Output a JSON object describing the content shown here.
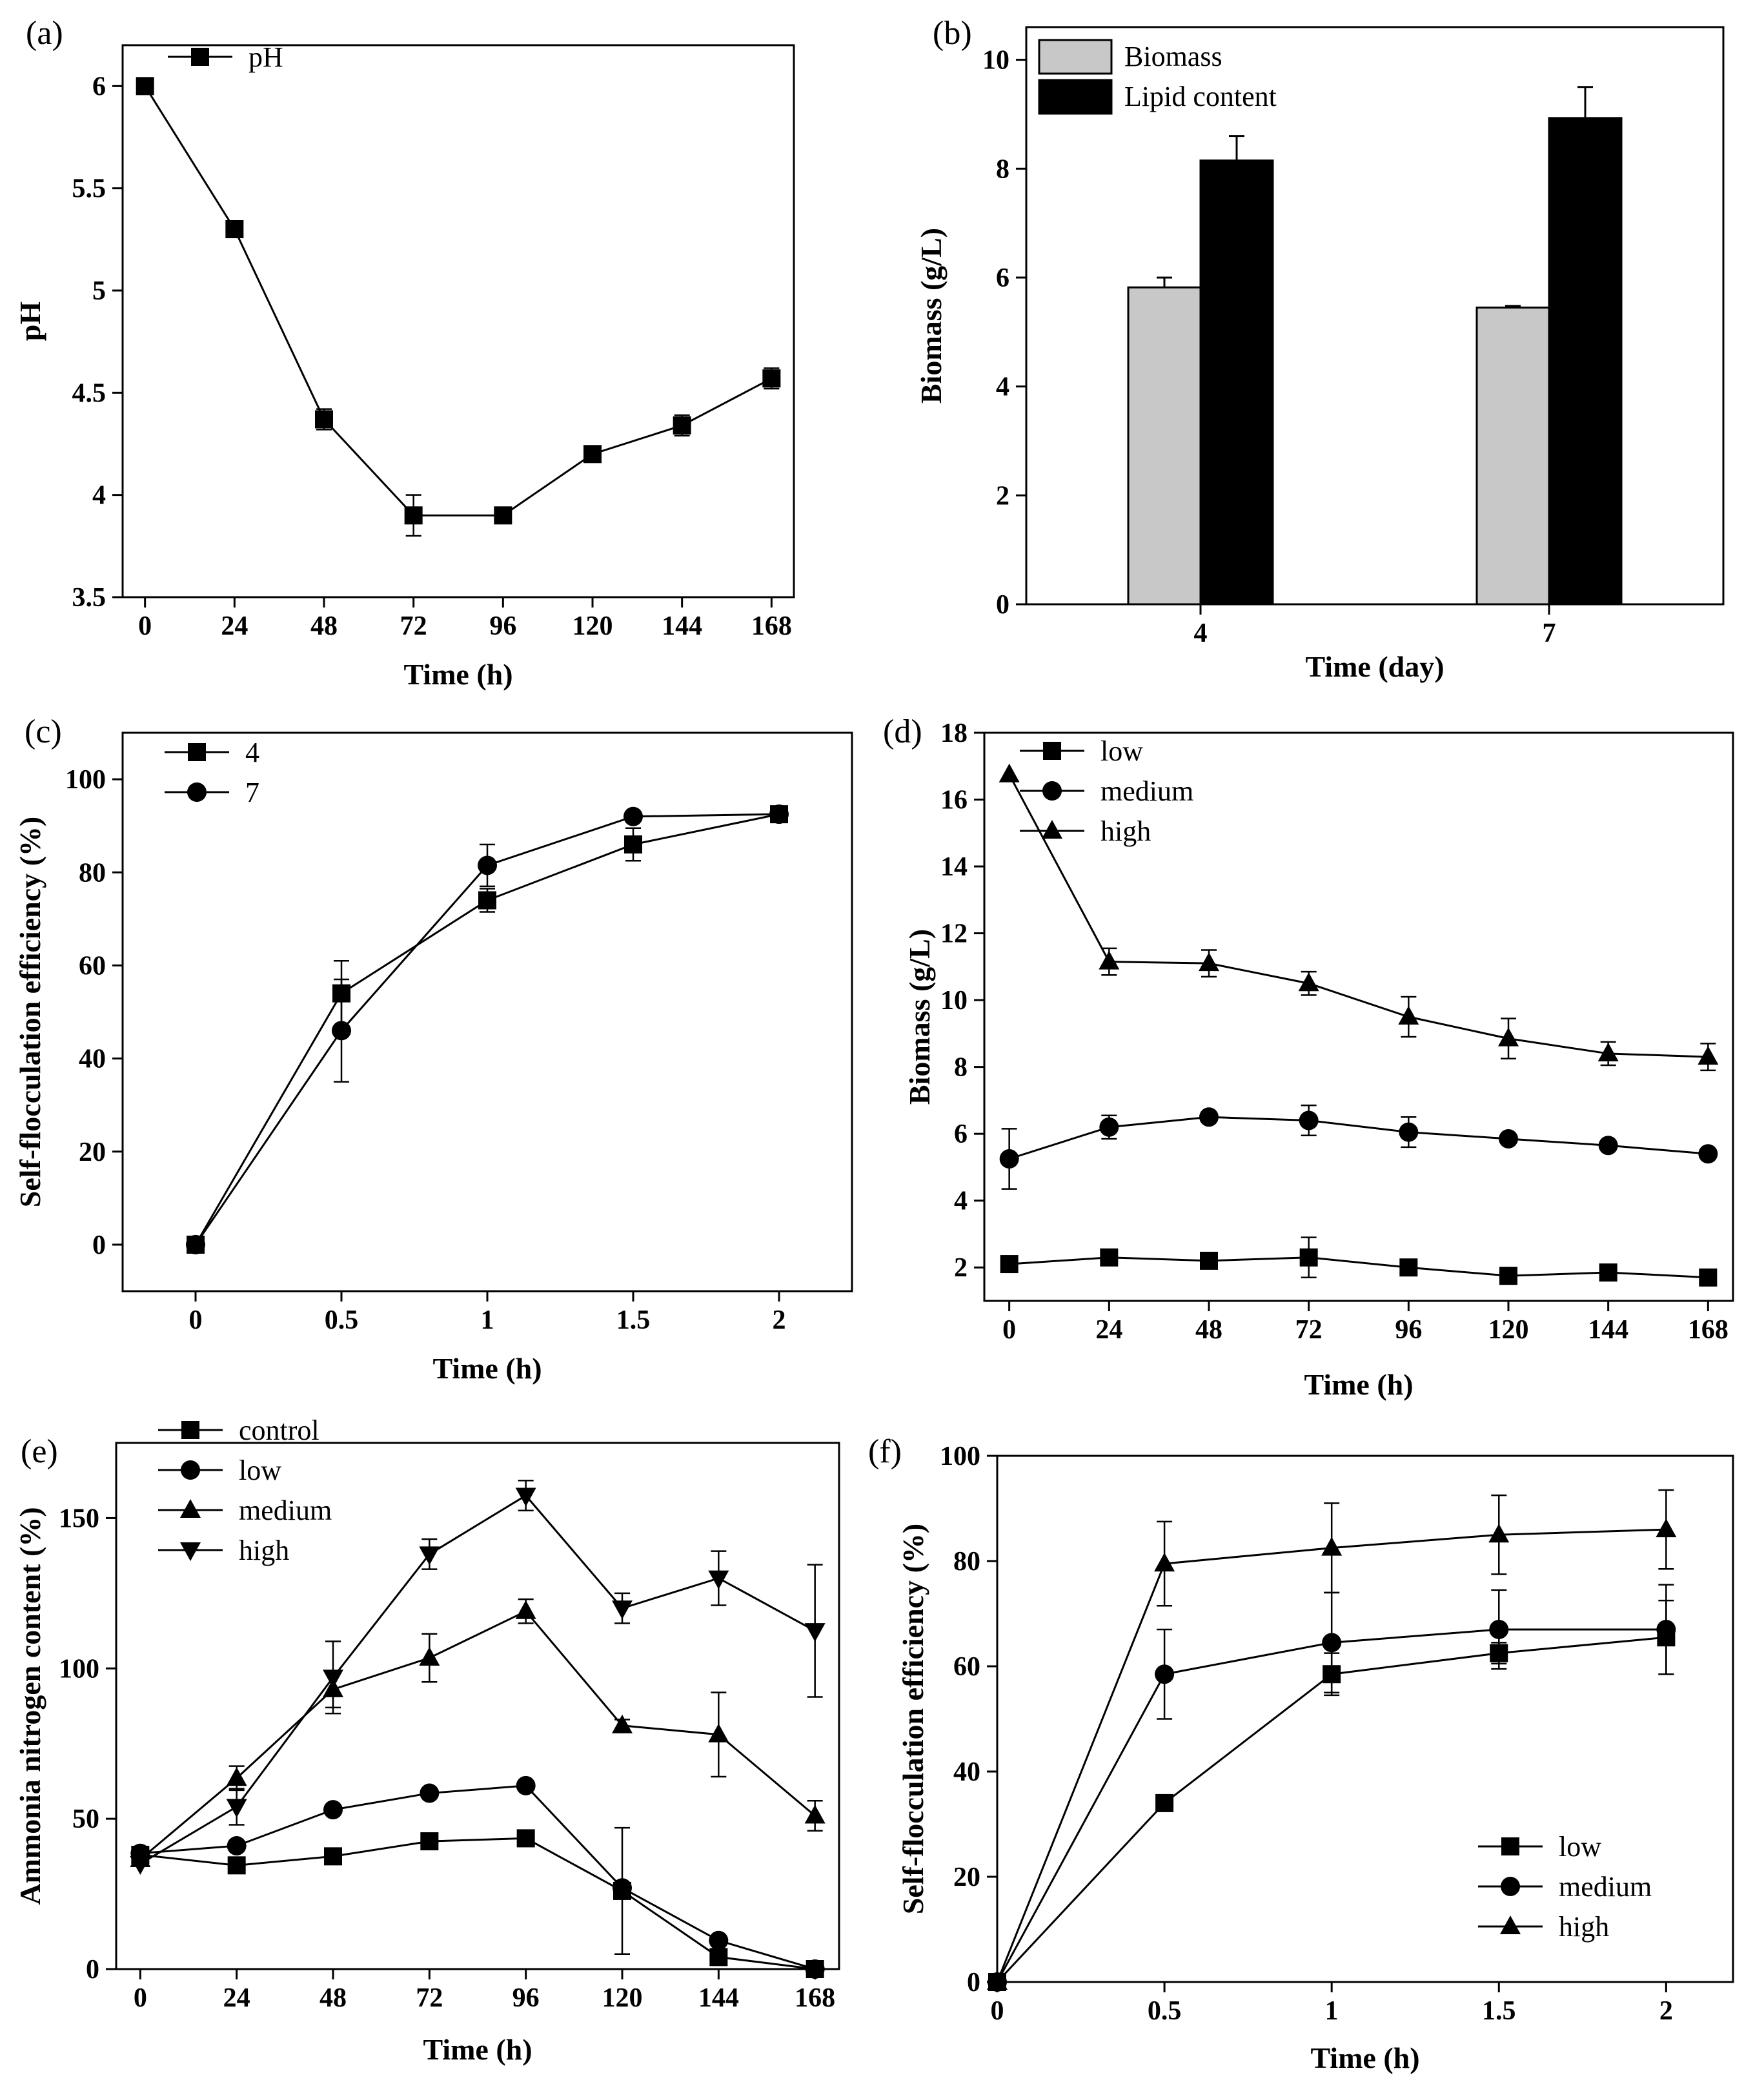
{
  "chart_data": [
    {
      "panel": "(a)",
      "type": "line",
      "xlabel": "Time (h)",
      "ylabel": "pH",
      "xlim": [
        -6,
        174
      ],
      "ylim": [
        3.5,
        6.2
      ],
      "xticks": [
        0,
        24,
        48,
        72,
        96,
        120,
        144,
        168
      ],
      "yticks": [
        3.5,
        4,
        4.5,
        5,
        5.5,
        6
      ],
      "ytick_labels": [
        "3.5",
        "4",
        "4.5",
        "5",
        "5.5",
        "6"
      ],
      "legend_pos": "top-left",
      "series": [
        {
          "name": "pH",
          "marker": "square",
          "x": [
            0,
            24,
            48,
            72,
            96,
            120,
            144,
            168
          ],
          "y": [
            6.0,
            5.3,
            4.37,
            3.9,
            3.9,
            4.2,
            4.34,
            4.57
          ],
          "err": [
            0,
            0,
            0.05,
            0.1,
            0,
            0,
            0.05,
            0.05
          ]
        }
      ]
    },
    {
      "panel": "(b)",
      "type": "bar",
      "xlabel": "Time (day)",
      "ylabel": "Biomass (g/L)",
      "ylim": [
        0,
        10.6
      ],
      "yticks": [
        0,
        2,
        4,
        6,
        8,
        10
      ],
      "ytick_labels": [
        "0",
        "2",
        "4",
        "6",
        "8",
        "10"
      ],
      "categories": [
        "4",
        "7"
      ],
      "legend_pos": "top-left",
      "series": [
        {
          "name": "Biomass",
          "color": "#c8c8c8",
          "values": [
            5.82,
            5.45
          ],
          "err": [
            0.18,
            0.03
          ]
        },
        {
          "name": "Lipid content",
          "color": "#000000",
          "values": [
            8.15,
            8.93
          ],
          "err": [
            0.45,
            0.57
          ]
        }
      ]
    },
    {
      "panel": "(c)",
      "type": "line",
      "xlabel": "Time (h)",
      "ylabel": "Self-flocculation efficiency (%)",
      "xlim": [
        -0.25,
        2.25
      ],
      "ylim": [
        -10,
        110
      ],
      "xticks": [
        0,
        0.5,
        1,
        1.5,
        2
      ],
      "xtick_labels": [
        "0",
        "0.5",
        "1",
        "1.5",
        "2"
      ],
      "yticks": [
        0,
        20,
        40,
        60,
        80,
        100
      ],
      "ytick_labels": [
        "0",
        "20",
        "40",
        "60",
        "80",
        "100"
      ],
      "legend_pos": "top-left",
      "series": [
        {
          "name": "4",
          "marker": "square",
          "x": [
            0,
            0.5,
            1,
            1.5,
            2
          ],
          "y": [
            0,
            54,
            74,
            86,
            92.5
          ],
          "err": [
            0,
            7,
            2.5,
            3.5,
            0
          ]
        },
        {
          "name": "7",
          "marker": "circle",
          "x": [
            0,
            0.5,
            1,
            1.5,
            2
          ],
          "y": [
            0,
            46,
            81.5,
            92,
            92.5
          ],
          "err": [
            0,
            11,
            4.5,
            0,
            0
          ]
        }
      ]
    },
    {
      "panel": "(d)",
      "type": "line",
      "xlabel": "Time (h)",
      "ylabel": "Biomass (g/L)",
      "xlim": [
        -6,
        174
      ],
      "ylim": [
        1,
        18
      ],
      "xticks": [
        0,
        24,
        48,
        72,
        96,
        120,
        144,
        168
      ],
      "yticks": [
        2,
        4,
        6,
        8,
        10,
        12,
        14,
        16,
        18
      ],
      "ytick_labels": [
        "2",
        "4",
        "6",
        "8",
        "10",
        "12",
        "14",
        "16",
        "18"
      ],
      "legend_pos": "top-left",
      "series": [
        {
          "name": "low",
          "marker": "square",
          "x": [
            0,
            24,
            48,
            72,
            96,
            120,
            144,
            168
          ],
          "y": [
            2.1,
            2.3,
            2.2,
            2.3,
            2.0,
            1.75,
            1.85,
            1.7
          ],
          "err": [
            0,
            0,
            0,
            0.6,
            0,
            0,
            0,
            0
          ]
        },
        {
          "name": "medium",
          "marker": "circle",
          "x": [
            0,
            24,
            48,
            72,
            96,
            120,
            144,
            168
          ],
          "y": [
            5.25,
            6.2,
            6.5,
            6.4,
            6.05,
            5.85,
            5.65,
            5.4
          ],
          "err": [
            0.9,
            0.35,
            0,
            0.45,
            0.45,
            0,
            0,
            0
          ]
        },
        {
          "name": "high",
          "marker": "triangle",
          "x": [
            0,
            24,
            48,
            72,
            96,
            120,
            144,
            168
          ],
          "y": [
            16.75,
            11.15,
            11.1,
            10.5,
            9.5,
            8.85,
            8.4,
            8.3
          ],
          "err": [
            0,
            0.4,
            0.4,
            0.35,
            0.6,
            0.6,
            0.35,
            0.4
          ]
        }
      ]
    },
    {
      "panel": "(e)",
      "type": "line",
      "xlabel": "Time (h)",
      "ylabel": "Ammonia nitrogen content (%)",
      "xlim": [
        -6,
        174
      ],
      "ylim": [
        0,
        175
      ],
      "xticks": [
        0,
        24,
        48,
        72,
        96,
        120,
        144,
        168
      ],
      "yticks": [
        0,
        50,
        100,
        150
      ],
      "ytick_labels": [
        "0",
        "50",
        "100",
        "150"
      ],
      "legend_pos": "top-left",
      "series": [
        {
          "name": "control",
          "marker": "square",
          "x": [
            0,
            24,
            48,
            72,
            96,
            120,
            144,
            168
          ],
          "y": [
            38,
            34.5,
            37.5,
            42.5,
            43.5,
            26,
            4,
            0
          ],
          "err": [
            0,
            0,
            0,
            0,
            0,
            21,
            0,
            0
          ]
        },
        {
          "name": "low",
          "marker": "circle",
          "x": [
            0,
            24,
            48,
            72,
            96,
            120,
            144,
            168
          ],
          "y": [
            38.5,
            41,
            53,
            58.5,
            61,
            27,
            9.5,
            0
          ],
          "err": [
            0,
            0,
            0,
            0,
            0,
            0,
            0,
            0
          ]
        },
        {
          "name": "medium",
          "marker": "triangle",
          "x": [
            0,
            24,
            48,
            72,
            96,
            120,
            144,
            168
          ],
          "y": [
            36.5,
            63.5,
            93,
            103.5,
            119,
            81,
            78,
            51
          ],
          "err": [
            0,
            4,
            6,
            8,
            4,
            2,
            14,
            5
          ]
        },
        {
          "name": "high",
          "marker": "triangle-down",
          "x": [
            0,
            24,
            48,
            72,
            96,
            120,
            144,
            168
          ],
          "y": [
            35,
            54,
            97,
            138,
            157.5,
            120,
            130,
            112.5
          ],
          "err": [
            0,
            6,
            12,
            5,
            5,
            5,
            9,
            22
          ]
        }
      ]
    },
    {
      "panel": "(f)",
      "type": "line",
      "xlabel": "Time (h)",
      "ylabel": "Self-flocculation efficiency (%)",
      "xlim": [
        0,
        2.2
      ],
      "ylim": [
        0,
        100
      ],
      "xticks": [
        0,
        0.5,
        1,
        1.5,
        2
      ],
      "xtick_labels": [
        "0",
        "0.5",
        "1",
        "1.5",
        "2"
      ],
      "yticks": [
        0,
        20,
        40,
        60,
        80,
        100
      ],
      "ytick_labels": [
        "0",
        "20",
        "40",
        "60",
        "80",
        "100"
      ],
      "legend_pos": "bottom-right",
      "series": [
        {
          "name": "low",
          "marker": "square",
          "x": [
            0,
            0.5,
            1,
            1.5,
            2
          ],
          "y": [
            0,
            34,
            58.5,
            62.5,
            65.5
          ],
          "err": [
            0,
            0,
            4,
            2,
            7
          ]
        },
        {
          "name": "medium",
          "marker": "circle",
          "x": [
            0,
            0.5,
            1,
            1.5,
            2
          ],
          "y": [
            0,
            58.5,
            64.5,
            67,
            67
          ],
          "err": [
            0,
            8.5,
            9.5,
            7.5,
            8.5
          ]
        },
        {
          "name": "high",
          "marker": "triangle",
          "x": [
            0,
            0.5,
            1,
            1.5,
            2
          ],
          "y": [
            0,
            79.5,
            82.5,
            85,
            86
          ],
          "err": [
            0,
            8,
            8.5,
            7.5,
            7.5
          ]
        }
      ]
    }
  ]
}
